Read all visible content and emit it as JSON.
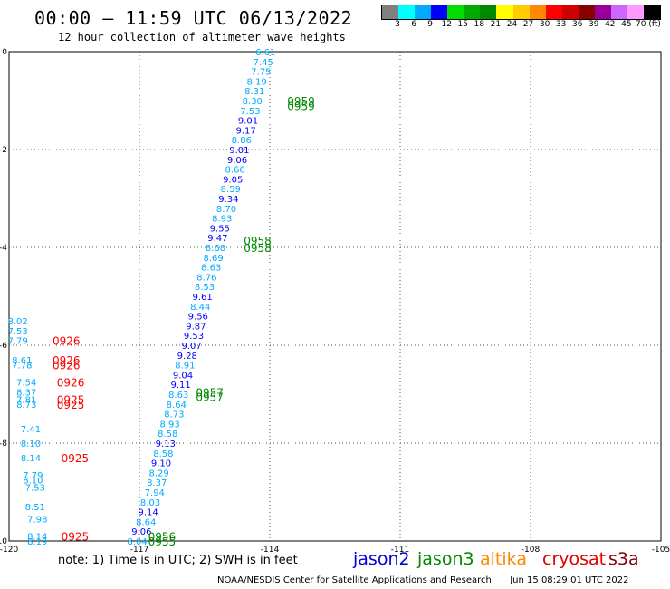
{
  "header": {
    "title": "00:00 – 11:59 UTC 06/13/2022",
    "subtitle": "12 hour collection of altimeter wave heights"
  },
  "colorbar": {
    "colors": [
      "#808080",
      "#00ffff",
      "#00aaff",
      "#0000ff",
      "#00dd00",
      "#00aa00",
      "#008800",
      "#ffff00",
      "#ffcc00",
      "#ff8800",
      "#ff0000",
      "#cc0000",
      "#880000",
      "#990099",
      "#cc66ff",
      "#ff99ff",
      "#000000"
    ],
    "labels": [
      "3",
      "6",
      "9",
      "12",
      "15",
      "18",
      "21",
      "24",
      "27",
      "30",
      "33",
      "36",
      "39",
      "42",
      "45",
      "70 (ft)"
    ]
  },
  "map": {
    "lon_ticks": [
      "-120",
      "-117",
      "-114",
      "-111",
      "-108",
      "-105"
    ],
    "lat_ticks": [
      "0",
      "-2",
      "-4",
      "-6",
      "-8",
      "-10"
    ],
    "lon_range": [
      -120,
      -105
    ],
    "lat_range": [
      -10,
      0
    ],
    "grid": "dotted"
  },
  "chart_data": {
    "type": "scatter",
    "xlabel": "",
    "ylabel": "",
    "xlim": [
      -120,
      -105
    ],
    "ylim": [
      -10,
      0
    ],
    "swh_labels": [
      {
        "lon": -114.1,
        "lat": -0.0,
        "text": "6.61",
        "color": "#00aaff"
      },
      {
        "lon": -114.15,
        "lat": -0.2,
        "text": "7.45",
        "color": "#00aaff"
      },
      {
        "lon": -114.2,
        "lat": -0.4,
        "text": "7.75",
        "color": "#00aaff"
      },
      {
        "lon": -114.3,
        "lat": -0.6,
        "text": "8.19",
        "color": "#00aaff"
      },
      {
        "lon": -114.35,
        "lat": -0.8,
        "text": "8.31",
        "color": "#00aaff"
      },
      {
        "lon": -114.4,
        "lat": -1.0,
        "text": "8.30",
        "color": "#00aaff"
      },
      {
        "lon": -114.45,
        "lat": -1.2,
        "text": "7.53",
        "color": "#00aaff"
      },
      {
        "lon": -114.5,
        "lat": -1.4,
        "text": "9.01",
        "color": "#0000ff"
      },
      {
        "lon": -114.55,
        "lat": -1.6,
        "text": "9.17",
        "color": "#0000ff"
      },
      {
        "lon": -114.65,
        "lat": -1.8,
        "text": "8.86",
        "color": "#00aaff"
      },
      {
        "lon": -114.7,
        "lat": -2.0,
        "text": "9.01",
        "color": "#0000ff"
      },
      {
        "lon": -114.75,
        "lat": -2.2,
        "text": "9.06",
        "color": "#0000ff"
      },
      {
        "lon": -114.8,
        "lat": -2.4,
        "text": "8.66",
        "color": "#00aaff"
      },
      {
        "lon": -114.85,
        "lat": -2.6,
        "text": "9.05",
        "color": "#0000ff"
      },
      {
        "lon": -114.9,
        "lat": -2.8,
        "text": "8.59",
        "color": "#00aaff"
      },
      {
        "lon": -114.95,
        "lat": -3.0,
        "text": "9.34",
        "color": "#0000ff"
      },
      {
        "lon": -115.0,
        "lat": -3.2,
        "text": "8.70",
        "color": "#00aaff"
      },
      {
        "lon": -115.1,
        "lat": -3.4,
        "text": "8.93",
        "color": "#00aaff"
      },
      {
        "lon": -115.15,
        "lat": -3.6,
        "text": "9.55",
        "color": "#0000ff"
      },
      {
        "lon": -115.2,
        "lat": -3.8,
        "text": "9.47",
        "color": "#0000ff"
      },
      {
        "lon": -115.25,
        "lat": -4.0,
        "text": "8.68",
        "color": "#00aaff"
      },
      {
        "lon": -115.3,
        "lat": -4.2,
        "text": "8.69",
        "color": "#00aaff"
      },
      {
        "lon": -115.35,
        "lat": -4.4,
        "text": "8.63",
        "color": "#00aaff"
      },
      {
        "lon": -115.45,
        "lat": -4.6,
        "text": "8.76",
        "color": "#00aaff"
      },
      {
        "lon": -115.5,
        "lat": -4.8,
        "text": "8.53",
        "color": "#00aaff"
      },
      {
        "lon": -115.55,
        "lat": -5.0,
        "text": "9.61",
        "color": "#0000ff"
      },
      {
        "lon": -115.6,
        "lat": -5.2,
        "text": "8.44",
        "color": "#00aaff"
      },
      {
        "lon": -115.65,
        "lat": -5.4,
        "text": "9.56",
        "color": "#0000ff"
      },
      {
        "lon": -115.7,
        "lat": -5.6,
        "text": "9.87",
        "color": "#0000ff"
      },
      {
        "lon": -115.75,
        "lat": -5.8,
        "text": "9.53",
        "color": "#0000ff"
      },
      {
        "lon": -115.8,
        "lat": -6.0,
        "text": "9.07",
        "color": "#0000ff"
      },
      {
        "lon": -115.9,
        "lat": -6.2,
        "text": "9.28",
        "color": "#0000ff"
      },
      {
        "lon": -115.95,
        "lat": -6.4,
        "text": "8.91",
        "color": "#00aaff"
      },
      {
        "lon": -116.0,
        "lat": -6.6,
        "text": "9.04",
        "color": "#0000ff"
      },
      {
        "lon": -116.05,
        "lat": -6.8,
        "text": "9.11",
        "color": "#0000ff"
      },
      {
        "lon": -116.1,
        "lat": -7.0,
        "text": "8.63",
        "color": "#00aaff"
      },
      {
        "lon": -116.15,
        "lat": -7.2,
        "text": "8.64",
        "color": "#00aaff"
      },
      {
        "lon": -116.2,
        "lat": -7.4,
        "text": "8.73",
        "color": "#00aaff"
      },
      {
        "lon": -116.3,
        "lat": -7.6,
        "text": "8.93",
        "color": "#00aaff"
      },
      {
        "lon": -116.35,
        "lat": -7.8,
        "text": "8.58",
        "color": "#00aaff"
      },
      {
        "lon": -116.4,
        "lat": -8.0,
        "text": "9.13",
        "color": "#0000ff"
      },
      {
        "lon": -116.45,
        "lat": -8.2,
        "text": "8.58",
        "color": "#00aaff"
      },
      {
        "lon": -116.5,
        "lat": -8.4,
        "text": "9.10",
        "color": "#0000ff"
      },
      {
        "lon": -116.55,
        "lat": -8.6,
        "text": "8.29",
        "color": "#00aaff"
      },
      {
        "lon": -116.6,
        "lat": -8.8,
        "text": "8.37",
        "color": "#00aaff"
      },
      {
        "lon": -116.65,
        "lat": -9.0,
        "text": "7.94",
        "color": "#00aaff"
      },
      {
        "lon": -116.75,
        "lat": -9.2,
        "text": "8.03",
        "color": "#00aaff"
      },
      {
        "lon": -116.8,
        "lat": -9.4,
        "text": "9.14",
        "color": "#0000ff"
      },
      {
        "lon": -116.85,
        "lat": -9.6,
        "text": "8.64",
        "color": "#00aaff"
      },
      {
        "lon": -116.95,
        "lat": -9.8,
        "text": "9.06",
        "color": "#0000ff"
      },
      {
        "lon": -117.05,
        "lat": -10.0,
        "text": "8.04",
        "color": "#00aaff"
      },
      {
        "lon": -119.8,
        "lat": -5.5,
        "text": "8.02",
        "color": "#00aaff"
      },
      {
        "lon": -119.8,
        "lat": -5.7,
        "text": "7.53",
        "color": "#00aaff"
      },
      {
        "lon": -119.8,
        "lat": -5.9,
        "text": "7.79",
        "color": "#00aaff"
      },
      {
        "lon": -119.7,
        "lat": -6.3,
        "text": "8.61",
        "color": "#00aaff"
      },
      {
        "lon": -119.7,
        "lat": -6.4,
        "text": "7.78",
        "color": "#00aaff"
      },
      {
        "lon": -119.6,
        "lat": -6.75,
        "text": "7.54",
        "color": "#00aaff"
      },
      {
        "lon": -119.6,
        "lat": -6.95,
        "text": "8.37",
        "color": "#00aaff"
      },
      {
        "lon": -119.6,
        "lat": -7.1,
        "text": "7.81",
        "color": "#00aaff"
      },
      {
        "lon": -119.6,
        "lat": -7.2,
        "text": "8.73",
        "color": "#00aaff"
      },
      {
        "lon": -119.5,
        "lat": -7.7,
        "text": "7.41",
        "color": "#00aaff"
      },
      {
        "lon": -119.5,
        "lat": -8.0,
        "text": "8.10",
        "color": "#00aaff"
      },
      {
        "lon": -119.5,
        "lat": -8.3,
        "text": "8.14",
        "color": "#00aaff"
      },
      {
        "lon": -119.45,
        "lat": -8.65,
        "text": "7.79",
        "color": "#00aaff"
      },
      {
        "lon": -119.45,
        "lat": -8.75,
        "text": "8.10",
        "color": "#00aaff"
      },
      {
        "lon": -119.4,
        "lat": -8.9,
        "text": "7.53",
        "color": "#00aaff"
      },
      {
        "lon": -119.4,
        "lat": -9.3,
        "text": "8.51",
        "color": "#00aaff"
      },
      {
        "lon": -119.35,
        "lat": -9.55,
        "text": "7.98",
        "color": "#00aaff"
      },
      {
        "lon": -119.35,
        "lat": -9.9,
        "text": "8.14",
        "color": "#00aaff"
      },
      {
        "lon": -119.35,
        "lat": -10.0,
        "text": "8.19",
        "color": "#00aaff"
      }
    ],
    "time_labels": [
      {
        "lon": -113.6,
        "lat": -1.0,
        "text": "0959",
        "color": "#008800"
      },
      {
        "lon": -113.6,
        "lat": -1.1,
        "text": "0959",
        "color": "#008800"
      },
      {
        "lon": -114.6,
        "lat": -3.85,
        "text": "0958",
        "color": "#008800"
      },
      {
        "lon": -114.6,
        "lat": -4.0,
        "text": "0958",
        "color": "#008800"
      },
      {
        "lon": -115.7,
        "lat": -6.95,
        "text": "0957",
        "color": "#008800"
      },
      {
        "lon": -115.7,
        "lat": -7.05,
        "text": "0957",
        "color": "#008800"
      },
      {
        "lon": -116.8,
        "lat": -9.9,
        "text": "0956",
        "color": "#008800"
      },
      {
        "lon": -116.8,
        "lat": -10.0,
        "text": "0955",
        "color": "#008800"
      },
      {
        "lon": -119.0,
        "lat": -5.9,
        "text": "0926",
        "color": "#ff0000"
      },
      {
        "lon": -119.0,
        "lat": -6.3,
        "text": "0926",
        "color": "#ff0000"
      },
      {
        "lon": -119.0,
        "lat": -6.4,
        "text": "0926",
        "color": "#ff0000"
      },
      {
        "lon": -118.9,
        "lat": -6.75,
        "text": "0926",
        "color": "#ff0000"
      },
      {
        "lon": -118.9,
        "lat": -7.1,
        "text": "0925",
        "color": "#ff0000"
      },
      {
        "lon": -118.9,
        "lat": -7.2,
        "text": "0925",
        "color": "#ff0000"
      },
      {
        "lon": -118.8,
        "lat": -8.3,
        "text": "0925",
        "color": "#ff0000"
      },
      {
        "lon": -118.8,
        "lat": -9.9,
        "text": "0925",
        "color": "#ff0000"
      }
    ]
  },
  "footer": {
    "note": "note:  1) Time is in UTC;  2) SWH is in feet",
    "satellites": [
      {
        "name": "jason2",
        "color": "#0000dd"
      },
      {
        "name": "jason3",
        "color": "#008800"
      },
      {
        "name": "altika",
        "color": "#ff8800"
      },
      {
        "name": "cryosat",
        "color": "#dd0000"
      },
      {
        "name": "s3a",
        "color": "#880000"
      }
    ],
    "credit": "NOAA/NESDIS Center for Satellite Applications and Research",
    "timestamp": "Jun 15 08:29:01 UTC 2022"
  }
}
